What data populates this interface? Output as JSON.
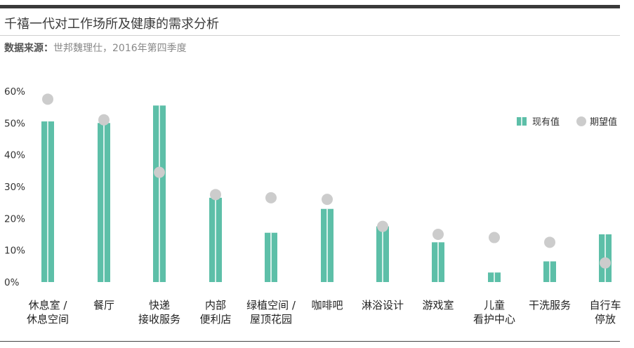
{
  "header": {
    "title": "千禧一代对工作场所及健康的需求分析",
    "source_label": "数据来源：",
    "source_text": "世邦魏理仕，2016年第四季度"
  },
  "chart_data": {
    "type": "bar",
    "categories": [
      [
        "休息室 /",
        "休息空间"
      ],
      [
        "餐厅"
      ],
      [
        "快递",
        "接收服务"
      ],
      [
        "内部",
        "便利店"
      ],
      [
        "绿植空间 /",
        "屋顶花园"
      ],
      [
        "咖啡吧"
      ],
      [
        "淋浴设计"
      ],
      [
        "游戏室"
      ],
      [
        "儿童",
        "看护中心"
      ],
      [
        "干洗服务"
      ],
      [
        "自行车",
        "停放"
      ]
    ],
    "series": [
      {
        "name": "现有值",
        "type": "bar",
        "color": "#5dbfa8",
        "values": [
          50.5,
          50,
          55.5,
          26.5,
          15.5,
          23,
          17.5,
          12.5,
          3,
          6.5,
          15
        ]
      },
      {
        "name": "期望值",
        "type": "scatter",
        "color": "#cccccc",
        "values": [
          57.5,
          51,
          34.5,
          27.5,
          26.5,
          26,
          17.5,
          15,
          14,
          12.5,
          6
        ]
      }
    ],
    "yticks": [
      "0%",
      "10%",
      "20%",
      "30%",
      "40%",
      "50%",
      "60%"
    ],
    "ylim": [
      0,
      60
    ],
    "legend_position": "top-right"
  }
}
